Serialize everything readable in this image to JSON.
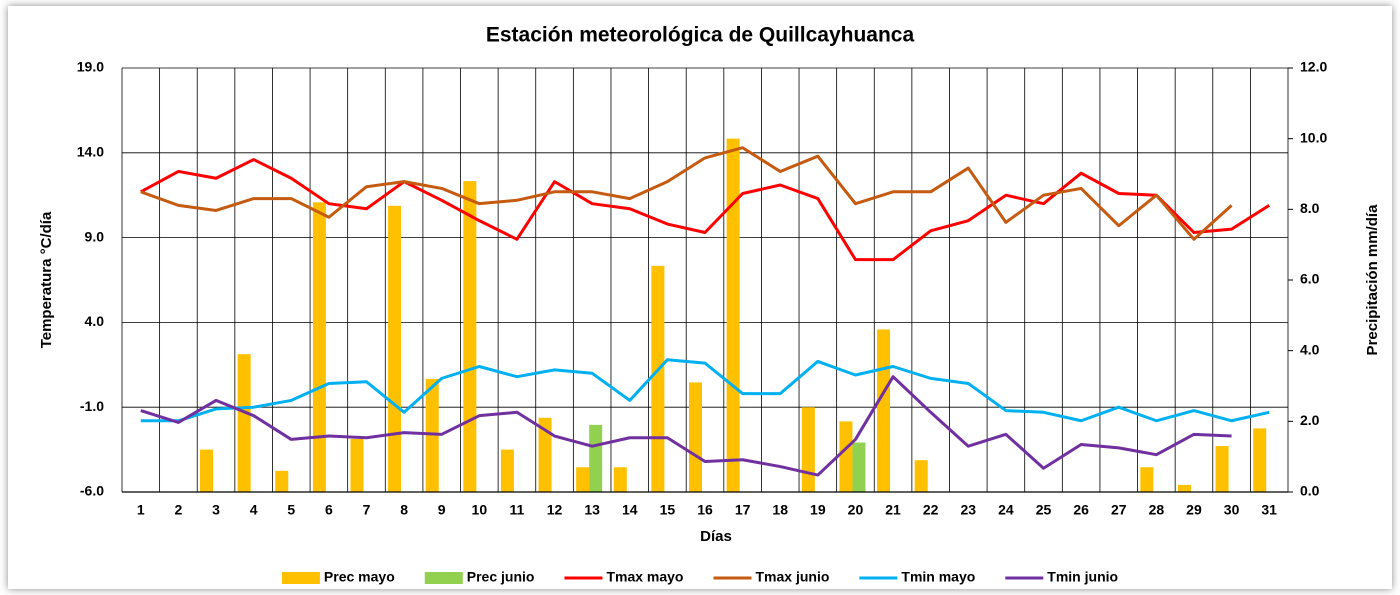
{
  "chart_data": {
    "type": "combo",
    "title": "Estación meteorológica de Quillcayhuanca",
    "x_label": "Días",
    "y_label": "Temperatura °C/día",
    "y2_label": "Precipitación mm/día",
    "categories": [
      "1",
      "2",
      "3",
      "4",
      "5",
      "6",
      "7",
      "8",
      "9",
      "10",
      "11",
      "12",
      "13",
      "14",
      "15",
      "16",
      "17",
      "18",
      "19",
      "20",
      "21",
      "22",
      "23",
      "24",
      "25",
      "26",
      "27",
      "28",
      "29",
      "30",
      "31"
    ],
    "ylim": [
      -6,
      19
    ],
    "yticks": [
      {
        "value": 19,
        "label": "19.0"
      },
      {
        "value": 14,
        "label": "14.0"
      },
      {
        "value": 9,
        "label": "9.0"
      },
      {
        "value": 4,
        "label": "4.0"
      },
      {
        "value": -1,
        "label": "-1.0"
      },
      {
        "value": -6,
        "label": "-6.0"
      }
    ],
    "y2lim": [
      0,
      12
    ],
    "y2ticks": [
      {
        "value": 0,
        "label": "0.0"
      },
      {
        "value": 2,
        "label": "2.0"
      },
      {
        "value": 4,
        "label": "4.0"
      },
      {
        "value": 6,
        "label": "6.0"
      },
      {
        "value": 8,
        "label": "8.0"
      },
      {
        "value": 10,
        "label": "10.0"
      },
      {
        "value": 12,
        "label": "12.0"
      }
    ],
    "grid": true,
    "legend": "bottom",
    "series": [
      {
        "name": "Prec mayo",
        "type": "bar",
        "axis": "y2",
        "color": "#ffc000",
        "values": [
          0,
          0,
          1.2,
          3.9,
          0.6,
          8.2,
          1.5,
          8.1,
          3.2,
          8.8,
          1.2,
          2.1,
          0.7,
          0.7,
          6.4,
          3.1,
          10.0,
          0,
          2.4,
          2.0,
          4.6,
          0.9,
          0,
          0,
          0,
          0,
          0,
          0.7,
          0.2,
          1.3,
          1.8
        ]
      },
      {
        "name": "Prec junio",
        "type": "bar",
        "axis": "y2",
        "color": "#92d050",
        "values": [
          0,
          0,
          0,
          0,
          0,
          0,
          0,
          0,
          0,
          0,
          0,
          0,
          1.9,
          0,
          0,
          0,
          0,
          0,
          0,
          1.4,
          0,
          0,
          0,
          0,
          0,
          0,
          0,
          0,
          0,
          0,
          0
        ]
      },
      {
        "name": "Tmax mayo",
        "type": "line",
        "color": "#ff0000",
        "values": [
          11.7,
          12.9,
          12.5,
          13.6,
          12.5,
          11.0,
          10.7,
          12.3,
          11.2,
          10.0,
          8.9,
          12.3,
          11.0,
          10.7,
          9.8,
          9.3,
          11.6,
          12.1,
          11.3,
          7.7,
          7.7,
          9.4,
          10.0,
          11.5,
          11.0,
          12.8,
          11.6,
          11.5,
          9.3,
          9.5,
          10.9
        ]
      },
      {
        "name": "Tmax junio",
        "type": "line",
        "color": "#c55a11",
        "values": [
          11.7,
          10.9,
          10.6,
          11.3,
          11.3,
          10.2,
          12.0,
          12.3,
          11.9,
          11.0,
          11.2,
          11.7,
          11.7,
          11.3,
          12.3,
          13.7,
          14.3,
          12.9,
          13.8,
          11.0,
          11.7,
          11.7,
          13.1,
          9.9,
          11.5,
          11.9,
          9.7,
          11.5,
          8.9,
          10.9,
          null
        ]
      },
      {
        "name": "Tmin mayo",
        "type": "line",
        "color": "#00b0f0",
        "values": [
          -1.8,
          -1.8,
          -1.1,
          -1.0,
          -0.6,
          0.4,
          0.5,
          -1.3,
          0.7,
          1.4,
          0.8,
          1.2,
          1.0,
          -0.6,
          1.8,
          1.6,
          -0.2,
          -0.2,
          1.7,
          0.9,
          1.4,
          0.7,
          0.4,
          -1.2,
          -1.3,
          -1.8,
          -1.0,
          -1.8,
          -1.2,
          -1.8,
          -1.3
        ]
      },
      {
        "name": "Tmin junio",
        "type": "line",
        "color": "#7030a0",
        "values": [
          -1.2,
          -1.9,
          -0.6,
          -1.5,
          -2.9,
          -2.7,
          -2.8,
          -2.5,
          -2.6,
          -1.5,
          -1.3,
          -2.7,
          -3.3,
          -2.8,
          -2.8,
          -4.2,
          -4.1,
          -4.5,
          -5.0,
          -2.9,
          0.8,
          -1.3,
          -3.3,
          -2.6,
          -4.6,
          -3.2,
          -3.4,
          -3.8,
          -2.6,
          -2.7,
          null
        ]
      }
    ]
  }
}
